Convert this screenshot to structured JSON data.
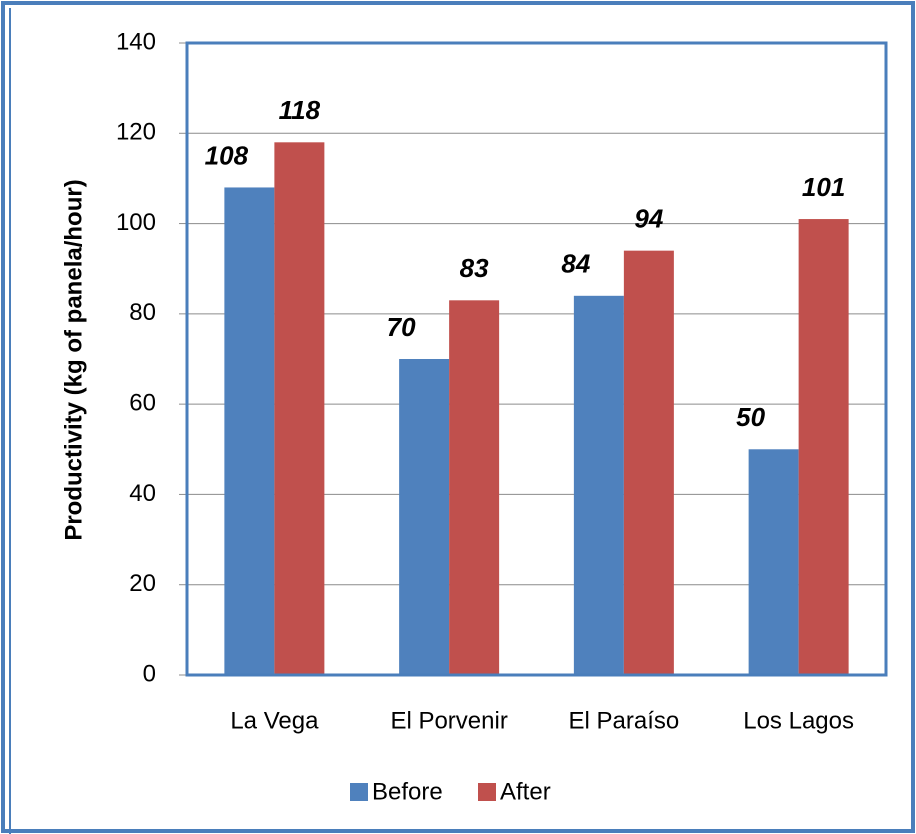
{
  "chart_data": {
    "type": "bar",
    "y_label": "Productivity (kg of panela/hour)",
    "categories": [
      "La Vega",
      "El Porvenir",
      "El Paraíso",
      "Los Lagos"
    ],
    "series": [
      {
        "name": "Before",
        "color": "#4f81bd",
        "values": [
          108,
          70,
          84,
          50
        ]
      },
      {
        "name": "After",
        "color": "#c0504d",
        "values": [
          118,
          83,
          94,
          101
        ]
      }
    ],
    "ylim": [
      0,
      140
    ],
    "yticks": [
      0,
      20,
      40,
      60,
      80,
      100,
      120,
      140
    ],
    "grid": true,
    "legend": "bottom"
  }
}
